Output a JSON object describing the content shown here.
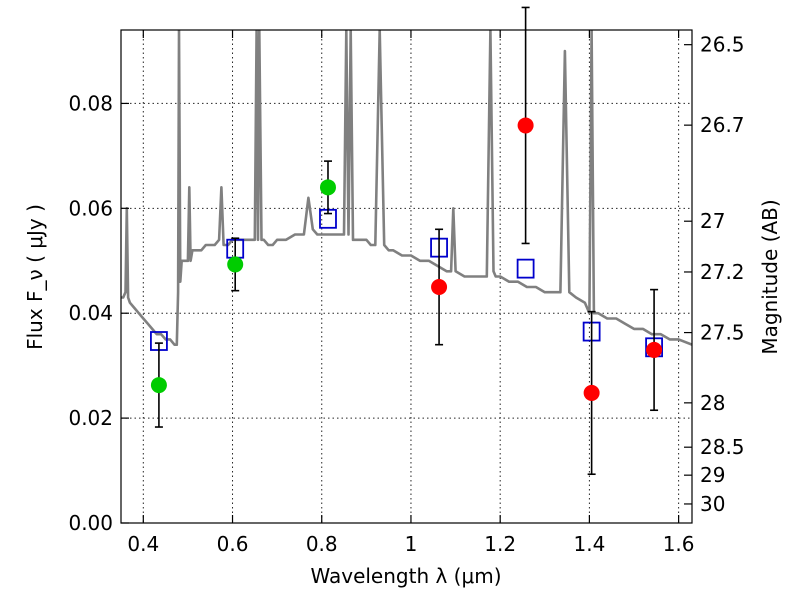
{
  "chart_data": {
    "type": "scatter",
    "xlabel": "Wavelength  λ (μm)",
    "ylabel": "Flux  F_ν  ( μJy )",
    "ylabel_right": "Magnitude (AB)",
    "xlim": [
      0.35,
      1.63
    ],
    "ylim": [
      0.0,
      0.094
    ],
    "x_ticks": [
      "0.4",
      "0.6",
      "0.8",
      "1",
      "1.2",
      "1.4",
      "1.6"
    ],
    "x_tick_values": [
      0.4,
      0.6,
      0.8,
      1.0,
      1.2,
      1.4,
      1.6
    ],
    "y_ticks": [
      "0.00",
      "0.02",
      "0.04",
      "0.06",
      "0.08"
    ],
    "y_tick_values": [
      0.0,
      0.02,
      0.04,
      0.06,
      0.08
    ],
    "right_ticks": [
      {
        "label": "26.5",
        "value": 26.5
      },
      {
        "label": "26.7",
        "value": 26.7
      },
      {
        "label": "27",
        "value": 27.0
      },
      {
        "label": "27.2",
        "value": 27.2
      },
      {
        "label": "27.5",
        "value": 27.5
      },
      {
        "label": "28",
        "value": 28.0
      },
      {
        "label": "28.5",
        "value": 28.5
      },
      {
        "label": "29",
        "value": 29.0
      },
      {
        "label": "30",
        "value": 30.0
      }
    ],
    "grid": true,
    "colors": {
      "spectrum": "#808080",
      "optical_points": "#00cc00",
      "nir_points": "#ff0000",
      "model_points": "#0000cc",
      "error_bars": "#000000"
    },
    "series": [
      {
        "kind": "spectrum",
        "x": [
          0.35,
          0.355,
          0.36,
          0.363,
          0.366,
          0.37,
          0.38,
          0.39,
          0.4,
          0.41,
          0.42,
          0.43,
          0.44,
          0.45,
          0.46,
          0.47,
          0.475,
          0.478,
          0.48,
          0.483,
          0.486,
          0.49,
          0.495,
          0.5,
          0.503,
          0.506,
          0.51,
          0.52,
          0.53,
          0.54,
          0.55,
          0.56,
          0.57,
          0.575,
          0.58,
          0.59,
          0.6,
          0.61,
          0.62,
          0.63,
          0.64,
          0.65,
          0.654,
          0.657,
          0.66,
          0.665,
          0.67,
          0.68,
          0.69,
          0.7,
          0.72,
          0.74,
          0.76,
          0.77,
          0.78,
          0.79,
          0.8,
          0.81,
          0.82,
          0.83,
          0.84,
          0.85,
          0.855,
          0.86,
          0.865,
          0.87,
          0.88,
          0.89,
          0.9,
          0.91,
          0.92,
          0.93,
          0.94,
          0.95,
          0.96,
          0.98,
          1.0,
          1.02,
          1.04,
          1.06,
          1.08,
          1.09,
          1.095,
          1.1,
          1.12,
          1.14,
          1.16,
          1.17,
          1.178,
          1.185,
          1.19,
          1.2,
          1.22,
          1.24,
          1.26,
          1.28,
          1.3,
          1.32,
          1.335,
          1.345,
          1.355,
          1.37,
          1.39,
          1.4,
          1.405,
          1.41,
          1.42,
          1.44,
          1.46,
          1.48,
          1.5,
          1.52,
          1.54,
          1.56,
          1.58,
          1.6,
          1.63
        ],
        "y": [
          0.043,
          0.043,
          0.044,
          0.06,
          0.043,
          0.042,
          0.041,
          0.04,
          0.039,
          0.038,
          0.037,
          0.036,
          0.036,
          0.035,
          0.035,
          0.034,
          0.034,
          0.044,
          0.094,
          0.046,
          0.05,
          0.05,
          0.05,
          0.05,
          0.064,
          0.05,
          0.052,
          0.052,
          0.052,
          0.053,
          0.053,
          0.053,
          0.054,
          0.064,
          0.053,
          0.053,
          0.054,
          0.054,
          0.054,
          0.054,
          0.054,
          0.054,
          0.094,
          0.054,
          0.094,
          0.054,
          0.054,
          0.053,
          0.053,
          0.054,
          0.054,
          0.055,
          0.055,
          0.062,
          0.056,
          0.055,
          0.055,
          0.055,
          0.055,
          0.055,
          0.055,
          0.055,
          0.094,
          0.055,
          0.094,
          0.054,
          0.054,
          0.054,
          0.054,
          0.053,
          0.053,
          0.094,
          0.053,
          0.052,
          0.052,
          0.051,
          0.051,
          0.05,
          0.05,
          0.049,
          0.048,
          0.048,
          0.06,
          0.048,
          0.047,
          0.047,
          0.047,
          0.047,
          0.094,
          0.048,
          0.047,
          0.047,
          0.046,
          0.046,
          0.045,
          0.045,
          0.044,
          0.044,
          0.044,
          0.09,
          0.044,
          0.043,
          0.042,
          0.04,
          0.094,
          0.04,
          0.04,
          0.039,
          0.039,
          0.038,
          0.037,
          0.037,
          0.036,
          0.036,
          0.035,
          0.035,
          0.034
        ]
      },
      {
        "kind": "observed",
        "color": "#00cc00",
        "x": [
          0.435,
          0.606,
          0.814
        ],
        "y": [
          0.0263,
          0.0493,
          0.064
        ],
        "err": [
          0.008,
          0.005,
          0.005
        ]
      },
      {
        "kind": "observed",
        "color": "#ff0000",
        "x": [
          1.063,
          1.257,
          1.405,
          1.545
        ],
        "y": [
          0.045,
          0.0758,
          0.0248,
          0.033
        ],
        "err": [
          0.011,
          0.0225,
          0.0155,
          0.0115
        ]
      },
      {
        "kind": "model",
        "color": "#0000cc",
        "x": [
          0.435,
          0.606,
          0.814,
          1.063,
          1.257,
          1.405,
          1.545
        ],
        "y": [
          0.0347,
          0.0523,
          0.058,
          0.0525,
          0.0485,
          0.0365,
          0.0335
        ]
      }
    ]
  }
}
